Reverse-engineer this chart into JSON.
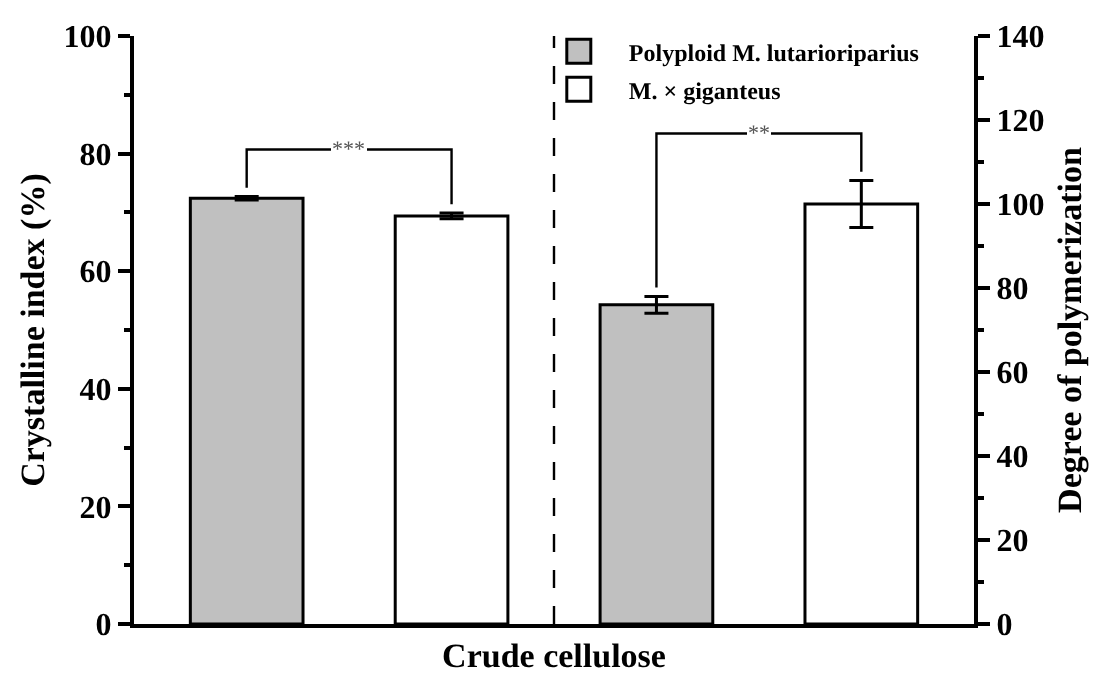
{
  "chart_data": {
    "type": "bar",
    "xlabel": "Crude cellulose",
    "ylabel": "Crystalline index (%)",
    "y2label": "Degree of polymerization",
    "categories": [
      null,
      null,
      null,
      null
    ],
    "series": [
      {
        "name": "Polyploid M. lutarioriparius",
        "color": "#c0c0c0",
        "values": [
          72.4,
          null,
          null,
          null
        ],
        "errors": [
          0.3,
          null,
          null,
          null
        ]
      },
      {
        "name": "M. × giganteus",
        "color": "#ffffff",
        "values": [
          null,
          69.4,
          null,
          null
        ],
        "errors": [
          null,
          0.5,
          null,
          null
        ]
      },
      {
        "color": "#c0c0c0",
        "axis": "y2",
        "values": [
          null,
          null,
          76,
          null
        ],
        "errors": [
          null,
          null,
          2,
          null
        ]
      },
      {
        "color": "#ffffff",
        "axis": "y2",
        "values": [
          null,
          null,
          null,
          100
        ],
        "errors": [
          null,
          null,
          null,
          5.6
        ]
      }
    ],
    "ylim": [
      0,
      100
    ],
    "yticks": [
      0,
      20,
      40,
      60,
      80,
      100
    ],
    "y2lim": [
      0,
      140
    ],
    "y2ticks": [
      0,
      20,
      40,
      60,
      80,
      100,
      120,
      140
    ],
    "annotations": [
      "***",
      "**"
    ],
    "legend": "top right",
    "grid": false
  }
}
